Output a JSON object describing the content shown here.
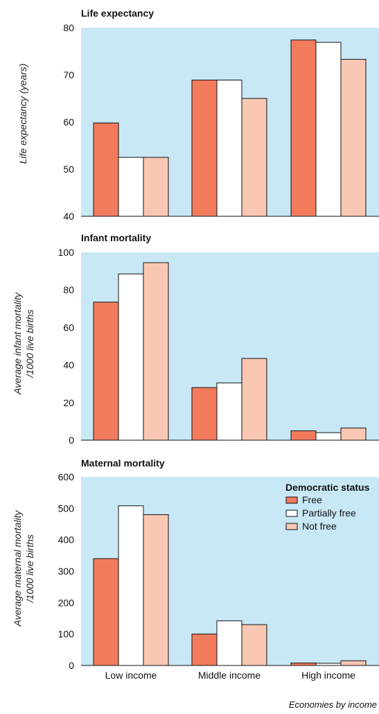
{
  "chart_data": [
    {
      "type": "bar",
      "title": "Life expectancy",
      "ylabel": "Life expectancy (years)",
      "ylim": [
        40,
        80
      ],
      "yticks": [
        40,
        50,
        60,
        70,
        80
      ],
      "categories": [
        "Low income",
        "Middle income",
        "High income"
      ],
      "series": [
        {
          "name": "Free",
          "values": [
            59.8,
            68.9,
            77.4
          ]
        },
        {
          "name": "Partially free",
          "values": [
            52.5,
            68.9,
            76.9
          ]
        },
        {
          "name": "Not free",
          "values": [
            52.5,
            65.0,
            73.3
          ]
        }
      ]
    },
    {
      "type": "bar",
      "title": "Infant mortality",
      "ylabel": "Average infant mortality /1000 live births",
      "ylabel_lines": [
        "Average infant mortality",
        "/1000 live births"
      ],
      "ylim": [
        0,
        100
      ],
      "yticks": [
        0,
        20,
        40,
        60,
        80,
        100
      ],
      "categories": [
        "Low income",
        "Middle income",
        "High income"
      ],
      "series": [
        {
          "name": "Free",
          "values": [
            73.5,
            28.0,
            5.0
          ]
        },
        {
          "name": "Partially free",
          "values": [
            88.5,
            30.5,
            4.0
          ]
        },
        {
          "name": "Not free",
          "values": [
            94.5,
            43.5,
            6.5
          ]
        }
      ]
    },
    {
      "type": "bar",
      "title": "Maternal mortality",
      "ylabel": "Average maternal mortality /1000 live births",
      "ylabel_lines": [
        "Average maternal mortality",
        "/1000 live births"
      ],
      "ylim": [
        0,
        600
      ],
      "yticks": [
        0,
        100,
        200,
        300,
        400,
        500,
        600
      ],
      "categories": [
        "Low income",
        "Middle income",
        "High income"
      ],
      "xtick_labels": [
        "Low income",
        "Middle income",
        "High income"
      ],
      "series": [
        {
          "name": "Free",
          "values": [
            340,
            100,
            8
          ]
        },
        {
          "name": "Partially free",
          "values": [
            508,
            142,
            7
          ]
        },
        {
          "name": "Not free",
          "values": [
            480,
            130,
            15
          ]
        }
      ],
      "legend": {
        "title": "Democratic status",
        "placement": "top-right",
        "entries": [
          "Free",
          "Partially free",
          "Not free"
        ]
      }
    }
  ],
  "colors": {
    "background": "#c8e8f6",
    "Free": "#f27b5c",
    "Partially free": "#ffffff",
    "Not free": "#f9c7b2",
    "bar_stroke": "#111111"
  },
  "xlabel": "Economies by income"
}
